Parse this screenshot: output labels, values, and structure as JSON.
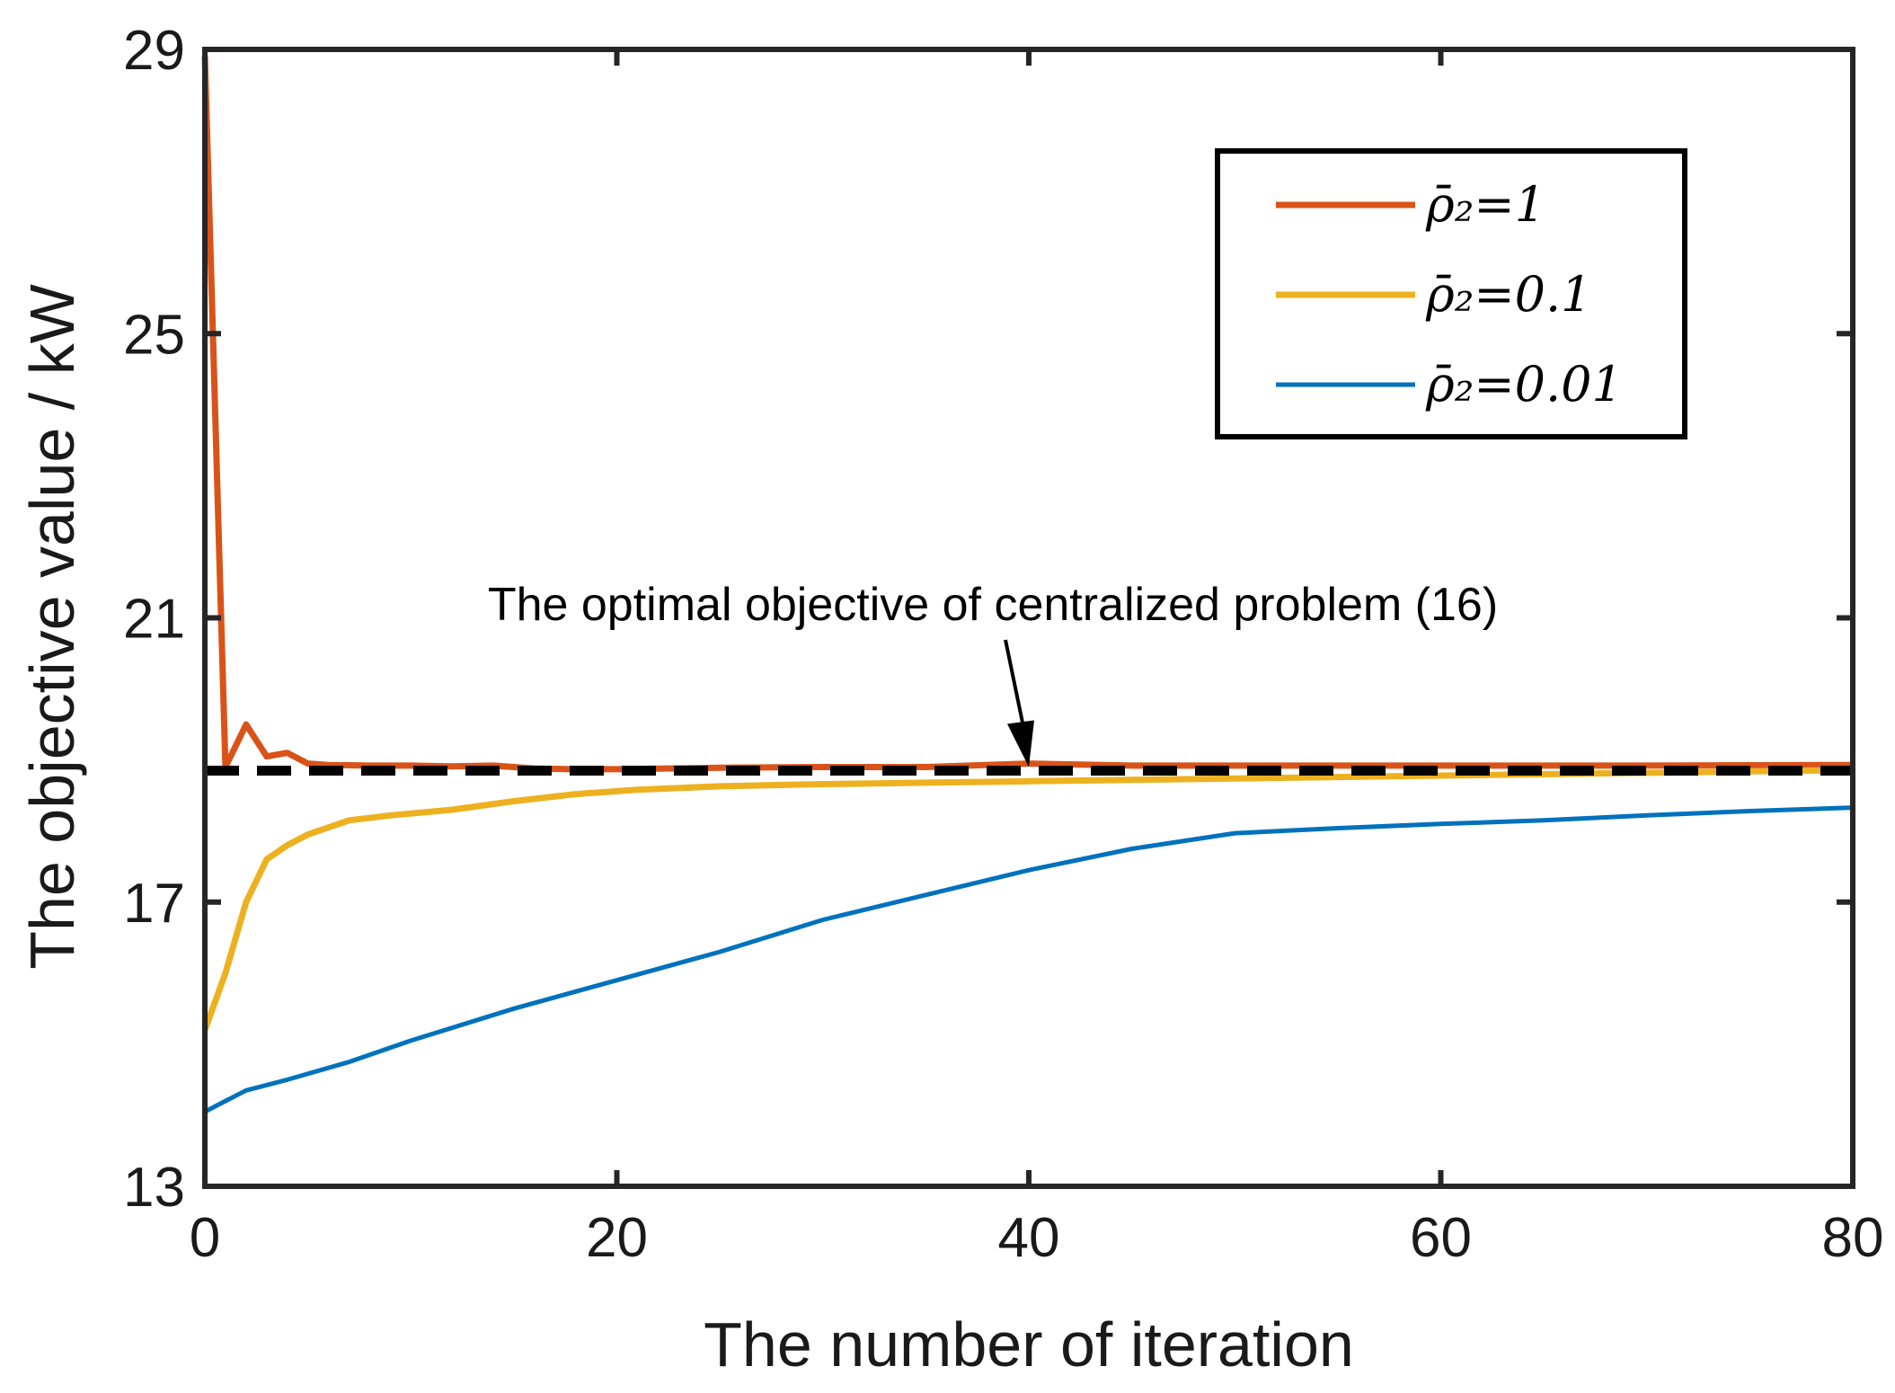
{
  "chart_data": {
    "type": "line",
    "xlabel": "The number of iteration",
    "ylabel": "The objective value / kW",
    "xlim": [
      0,
      80
    ],
    "ylim": [
      13,
      29
    ],
    "xticks": [
      0,
      20,
      40,
      60,
      80
    ],
    "yticks": [
      13,
      17,
      21,
      25,
      29
    ],
    "grid": false,
    "legend_position": "top-right",
    "reference_line": {
      "y": 18.85,
      "style": "dashed",
      "color": "#000000"
    },
    "annotation": {
      "text": "The optimal objective of centralized problem (16)",
      "arrow_target": [
        40,
        18.85
      ]
    },
    "series": [
      {
        "name": "ρ̄₂=1",
        "color": "#D95319",
        "x": [
          0,
          1,
          2,
          3,
          4,
          5,
          6,
          8,
          10,
          12,
          14,
          16,
          18,
          20,
          25,
          30,
          35,
          40,
          45,
          50,
          60,
          70,
          80
        ],
        "y": [
          28.9,
          18.9,
          19.5,
          19.05,
          19.1,
          18.95,
          18.93,
          18.92,
          18.92,
          18.91,
          18.92,
          18.88,
          18.87,
          18.87,
          18.89,
          18.9,
          18.9,
          18.95,
          18.92,
          18.92,
          18.92,
          18.92,
          18.93
        ]
      },
      {
        "name": "ρ̄₂=0.1",
        "color": "#EDB120",
        "x": [
          0,
          1,
          2,
          3,
          4,
          5,
          7,
          9,
          12,
          15,
          18,
          21,
          25,
          30,
          35,
          40,
          45,
          50,
          55,
          60,
          70,
          80
        ],
        "y": [
          15.2,
          16.0,
          17.0,
          17.6,
          17.8,
          17.95,
          18.15,
          18.22,
          18.3,
          18.42,
          18.52,
          18.58,
          18.63,
          18.66,
          18.68,
          18.7,
          18.72,
          18.74,
          18.76,
          18.78,
          18.82,
          18.86
        ]
      },
      {
        "name": "ρ̄₂=0.01",
        "color": "#0072BD",
        "x": [
          0,
          1,
          2,
          4,
          7,
          10,
          15,
          20,
          25,
          30,
          35,
          40,
          45,
          50,
          55,
          60,
          65,
          70,
          75,
          80
        ],
        "y": [
          14.05,
          14.2,
          14.35,
          14.5,
          14.75,
          15.05,
          15.5,
          15.9,
          16.3,
          16.75,
          17.1,
          17.45,
          17.75,
          17.97,
          18.04,
          18.1,
          18.15,
          18.22,
          18.28,
          18.33
        ]
      }
    ]
  }
}
